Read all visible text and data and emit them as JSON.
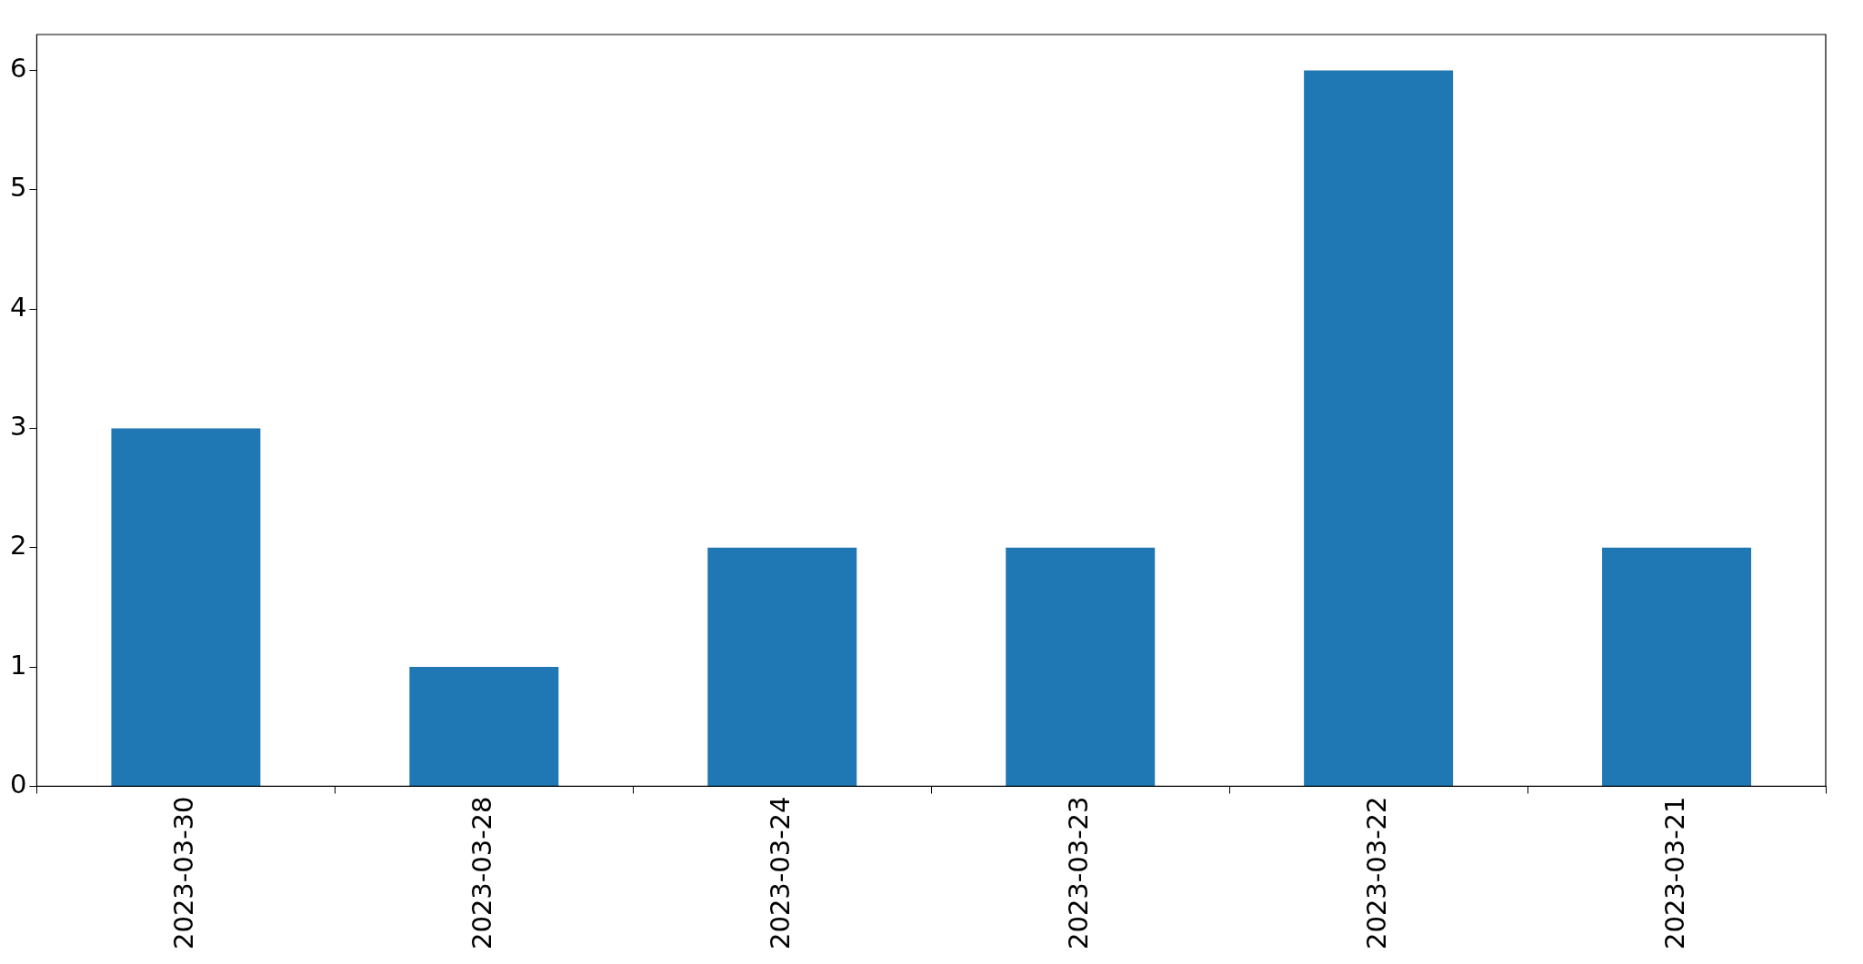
{
  "chart_data": {
    "type": "bar",
    "categories": [
      "2023-03-30",
      "2023-03-28",
      "2023-03-24",
      "2023-03-23",
      "2023-03-22",
      "2023-03-21"
    ],
    "values": [
      3,
      1,
      2,
      2,
      6,
      2
    ],
    "color": "#1f77b4",
    "ylim": [
      0,
      6.3
    ],
    "yticks": [
      0,
      1,
      2,
      3,
      4,
      5,
      6
    ],
    "grid": false,
    "legend": false
  }
}
